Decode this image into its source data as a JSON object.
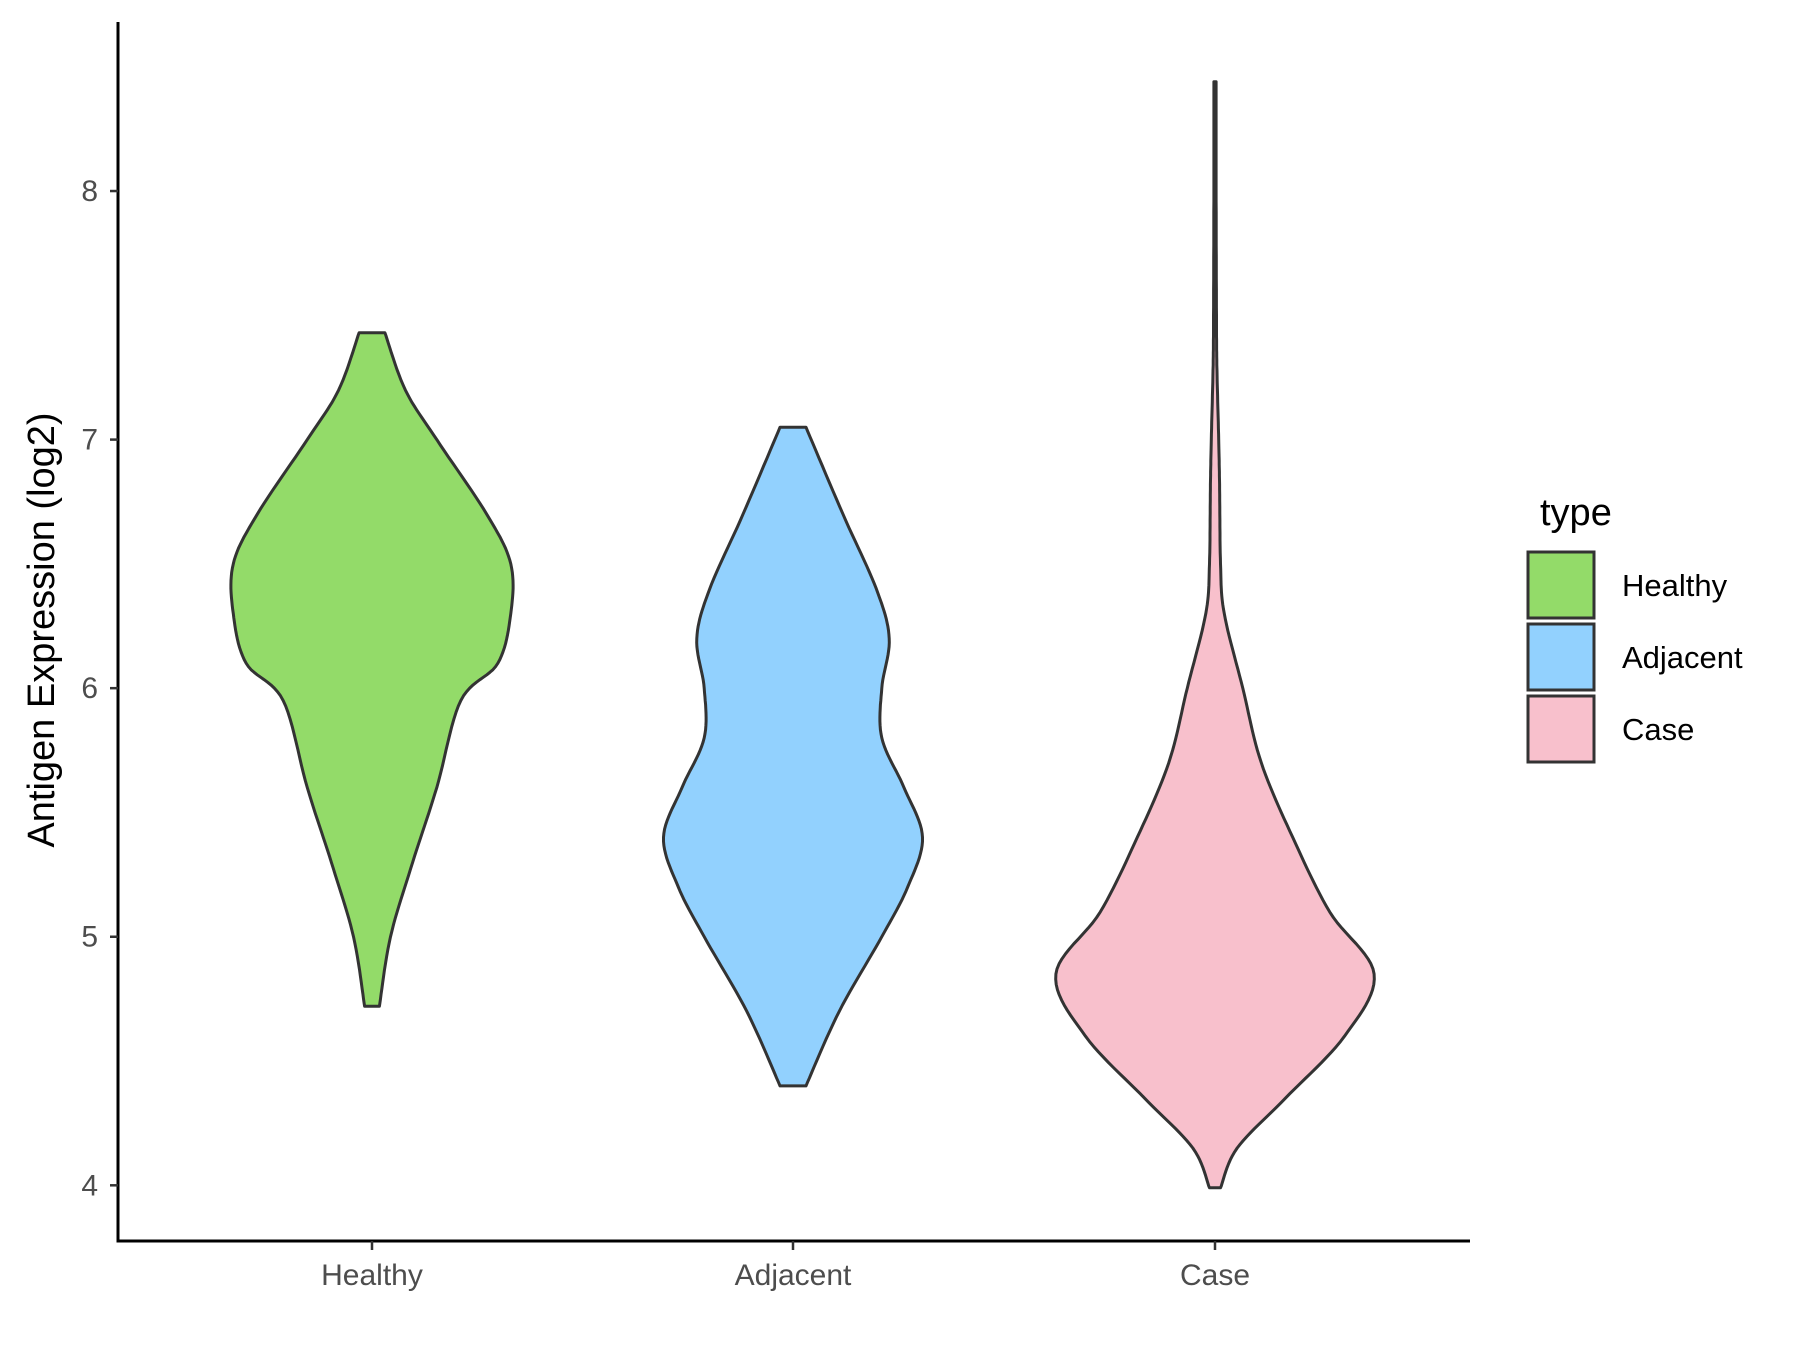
{
  "chart_data": {
    "type": "violin",
    "ylabel": "Antigen Expression (log2)",
    "xlabel": "",
    "categories": [
      "Healthy",
      "Adjacent",
      "Case"
    ],
    "ylim": [
      3.78,
      8.68
    ],
    "yticks": [
      4,
      5,
      6,
      7,
      8
    ],
    "grid": false,
    "legend": {
      "title": "type",
      "position": "right",
      "entries": [
        {
          "label": "Healthy",
          "color": "#93DB69"
        },
        {
          "label": "Adjacent",
          "color": "#92D1FE"
        },
        {
          "label": "Case",
          "color": "#F8C0CC"
        }
      ]
    },
    "series": [
      {
        "category": "Healthy",
        "color": "#93DB69",
        "min": 4.72,
        "max": 7.43,
        "density_profile": [
          [
            4.72,
            0.04
          ],
          [
            5.0,
            0.1
          ],
          [
            5.3,
            0.22
          ],
          [
            5.6,
            0.35
          ],
          [
            5.95,
            0.48
          ],
          [
            6.1,
            0.68
          ],
          [
            6.3,
            0.75
          ],
          [
            6.5,
            0.75
          ],
          [
            6.7,
            0.62
          ],
          [
            7.0,
            0.35
          ],
          [
            7.2,
            0.18
          ],
          [
            7.43,
            0.07
          ]
        ]
      },
      {
        "category": "Adjacent",
        "color": "#92D1FE",
        "min": 4.4,
        "max": 7.05,
        "density_profile": [
          [
            4.4,
            0.07
          ],
          [
            4.7,
            0.25
          ],
          [
            5.0,
            0.48
          ],
          [
            5.2,
            0.62
          ],
          [
            5.4,
            0.7
          ],
          [
            5.6,
            0.6
          ],
          [
            5.8,
            0.48
          ],
          [
            6.0,
            0.48
          ],
          [
            6.2,
            0.52
          ],
          [
            6.4,
            0.45
          ],
          [
            6.7,
            0.27
          ],
          [
            7.05,
            0.07
          ]
        ]
      },
      {
        "category": "Case",
        "color": "#F8C0CC",
        "min": 3.99,
        "max": 8.44,
        "density_profile": [
          [
            3.99,
            0.03
          ],
          [
            4.15,
            0.12
          ],
          [
            4.35,
            0.38
          ],
          [
            4.6,
            0.7
          ],
          [
            4.85,
            0.86
          ],
          [
            5.1,
            0.62
          ],
          [
            5.4,
            0.42
          ],
          [
            5.7,
            0.25
          ],
          [
            6.0,
            0.15
          ],
          [
            6.3,
            0.05
          ],
          [
            6.5,
            0.03
          ],
          [
            6.8,
            0.025
          ],
          [
            7.0,
            0.02
          ],
          [
            7.3,
            0.01
          ],
          [
            7.5,
            0.008
          ],
          [
            8.0,
            0.006
          ],
          [
            8.44,
            0.006
          ]
        ]
      }
    ]
  }
}
